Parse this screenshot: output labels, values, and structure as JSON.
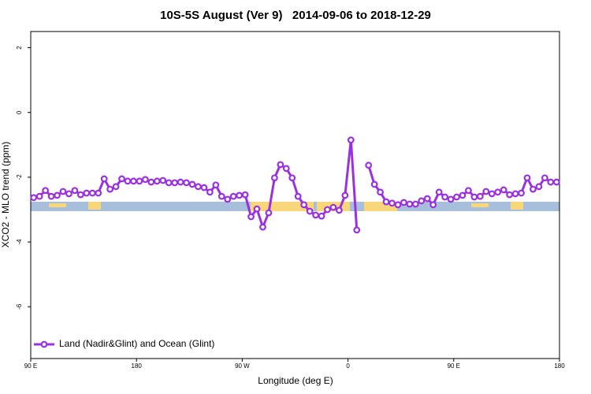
{
  "chart_data": {
    "type": "line",
    "title": "10S-5S August (Ver 9)   2014-09-06 to 2018-12-29",
    "x_label": "Longitude (deg E)",
    "y_label": "XCO2 - MLO trend (ppm)",
    "xlim": [
      90,
      540
    ],
    "ylim": [
      -7.6,
      2.5
    ],
    "xticks": [
      {
        "value": 90,
        "label": "90 E"
      },
      {
        "value": 180,
        "label": "180"
      },
      {
        "value": 270,
        "label": "90 W"
      },
      {
        "value": 360,
        "label": "0"
      },
      {
        "value": 450,
        "label": "90 E"
      },
      {
        "value": 540,
        "label": "180"
      }
    ],
    "yticks": [
      2,
      0,
      -2,
      -4,
      -6
    ],
    "legend": "bottom-left",
    "x": [
      92.5,
      97.5,
      102.5,
      107.5,
      112.5,
      117.5,
      122.5,
      127.5,
      132.5,
      137.5,
      142.5,
      147.5,
      152.5,
      157.5,
      162.5,
      167.5,
      172.5,
      177.5,
      182.5,
      187.5,
      192.5,
      197.5,
      202.5,
      207.5,
      212.5,
      217.5,
      222.5,
      227.5,
      232.5,
      237.5,
      242.5,
      247.5,
      252.5,
      257.5,
      262.5,
      267.5,
      272.5,
      277.5,
      282.5,
      287.5,
      292.5,
      297.5,
      302.5,
      307.5,
      312.5,
      317.5,
      322.5,
      327.5,
      332.5,
      337.5,
      342.5,
      347.5,
      352.5,
      357.5,
      362.5,
      367.5,
      372.5,
      377.5,
      382.5,
      387.5,
      392.5,
      397.5,
      402.5,
      407.5,
      412.5,
      417.5,
      422.5,
      427.5,
      432.5,
      437.5,
      442.5,
      447.5,
      452.5,
      457.5,
      462.5,
      467.5,
      472.5,
      477.5,
      482.5,
      487.5,
      492.5,
      497.5,
      502.5,
      507.5,
      512.5,
      517.5,
      522.5,
      527.5,
      532.5,
      537.5
    ],
    "series": [
      {
        "name": "Land (Nadir&Glint) and Ocean (Glint)",
        "color": "#9b30e0",
        "values": [
          -2.63,
          -2.59,
          -2.41,
          -2.59,
          -2.56,
          -2.44,
          -2.51,
          -2.41,
          -2.54,
          -2.49,
          -2.49,
          -2.49,
          -2.05,
          -2.37,
          -2.29,
          -2.05,
          -2.12,
          -2.12,
          -2.12,
          -2.07,
          -2.15,
          -2.12,
          -2.1,
          -2.17,
          -2.17,
          -2.15,
          -2.17,
          -2.22,
          -2.29,
          -2.32,
          -2.46,
          -2.24,
          -2.59,
          -2.68,
          -2.59,
          -2.56,
          -2.54,
          -3.22,
          -2.98,
          -3.54,
          -3.1,
          -2.02,
          -1.61,
          -1.73,
          -2.02,
          -2.59,
          -2.85,
          -3.05,
          -3.17,
          -3.2,
          -3.0,
          -2.93,
          -3.02,
          -2.56,
          -0.85,
          -3.63,
          null,
          -1.63,
          -2.22,
          -2.46,
          -2.76,
          -2.8,
          -2.85,
          -2.78,
          -2.83,
          -2.83,
          -2.73,
          -2.66,
          -2.85,
          -2.46,
          -2.61,
          -2.68,
          -2.61,
          -2.56,
          -2.41,
          -2.61,
          -2.59,
          -2.44,
          -2.51,
          -2.46,
          -2.39,
          -2.54,
          -2.51,
          -2.49,
          -2.02,
          -2.37,
          -2.29,
          -2.02,
          -2.15,
          -2.15
        ]
      }
    ]
  }
}
